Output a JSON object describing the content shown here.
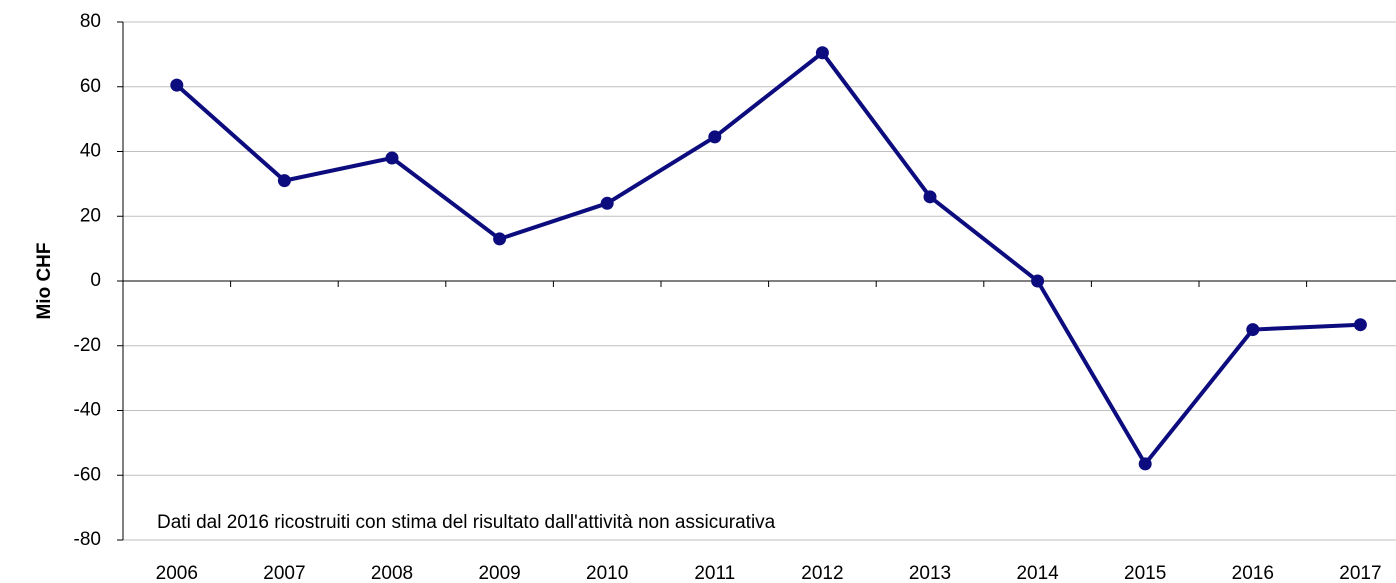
{
  "chart_data": {
    "type": "line",
    "y_label": "Mio CHF",
    "annotation": "Dati dal 2016 ricostruiti con stima del risultato dall'attività non assicurativa",
    "categories": [
      "2006",
      "2007",
      "2008",
      "2009",
      "2010",
      "2011",
      "2012",
      "2013",
      "2014",
      "2015",
      "2016",
      "2017"
    ],
    "values": [
      60.5,
      31,
      38,
      13,
      24,
      44.5,
      70.5,
      26,
      0,
      -56.5,
      -15,
      -13.5
    ],
    "color": "#0c0c7e",
    "ylim": [
      -80,
      80
    ],
    "yticks": [
      -80,
      -60,
      -40,
      -20,
      0,
      20,
      40,
      60,
      80
    ],
    "grid": true
  }
}
